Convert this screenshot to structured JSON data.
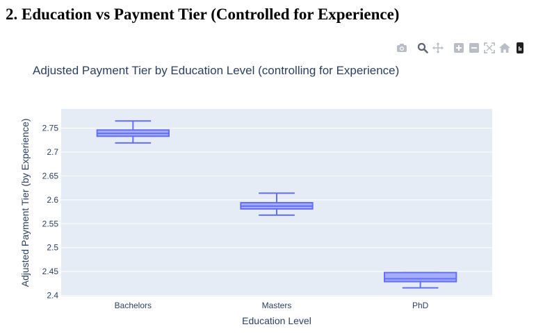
{
  "page": {
    "heading": "2. Education vs Payment Tier (Controlled for Experience)"
  },
  "modebar": {
    "icons": [
      "camera-icon",
      "zoom-icon",
      "pan-icon",
      "zoom-in-icon",
      "zoom-out-icon",
      "autoscale-icon",
      "home-icon",
      "plotly-logo"
    ]
  },
  "colors": {
    "box_line": "#636efa",
    "box_fill": "rgba(99,110,250,0.5)",
    "plot_bg": "#e5ecf6",
    "grid": "#ffffff",
    "text": "#2a3f5f"
  },
  "chart_data": {
    "type": "box",
    "title": "Adjusted Payment Tier by Education Level (controlling for Experience)",
    "xlabel": "Education Level",
    "ylabel": "Adjusted Payment Tier (by Experience)",
    "categories": [
      "Bachelors",
      "Masters",
      "PhD"
    ],
    "ylim": [
      2.398,
      2.79
    ],
    "yticks": [
      2.4,
      2.45,
      2.5,
      2.55,
      2.6,
      2.65,
      2.7,
      2.75
    ],
    "ytick_labels": [
      "2.4",
      "2.45",
      "2.5",
      "2.55",
      "2.6",
      "2.65",
      "2.7",
      "2.75"
    ],
    "grid": true,
    "legend": "none",
    "boxes": [
      {
        "category": "Bachelors",
        "min": 2.719,
        "q1": 2.733,
        "median": 2.739,
        "q3": 2.746,
        "max": 2.765
      },
      {
        "category": "Masters",
        "min": 2.568,
        "q1": 2.581,
        "median": 2.587,
        "q3": 2.594,
        "max": 2.614
      },
      {
        "category": "PhD",
        "min": 2.416,
        "q1": 2.429,
        "median": 2.435,
        "q3": 2.448,
        "max": 2.448
      }
    ]
  }
}
